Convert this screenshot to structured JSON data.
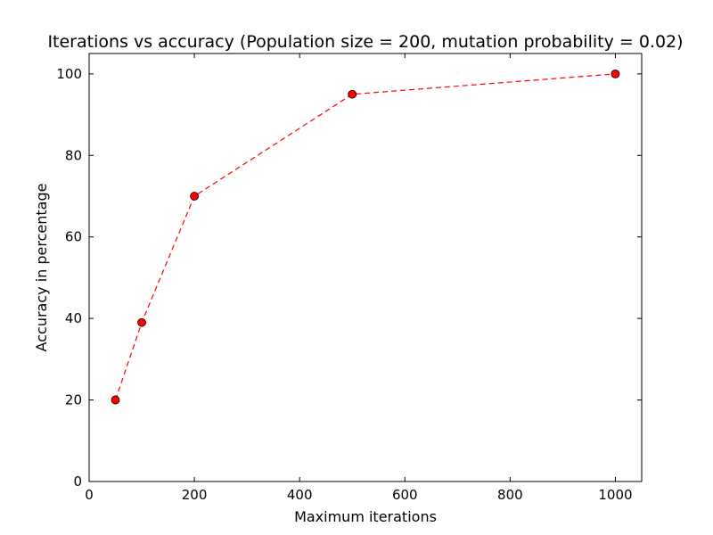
{
  "chart_data": {
    "type": "line",
    "title": "Iterations vs accuracy (Population size = 200, mutation probability = 0.02)",
    "xlabel": "Maximum iterations",
    "ylabel": "Accuracy in percentage",
    "xlim": [
      0,
      1050
    ],
    "ylim": [
      0,
      105
    ],
    "xticks": [
      0,
      200,
      400,
      600,
      800,
      1000
    ],
    "yticks": [
      0,
      20,
      40,
      60,
      80,
      100
    ],
    "xtick_labels": [
      "0",
      "200",
      "400",
      "600",
      "800",
      "1000"
    ],
    "ytick_labels": [
      "0",
      "20",
      "40",
      "60",
      "80",
      "100"
    ],
    "grid": false,
    "series": [
      {
        "x": [
          50,
          100,
          200,
          500,
          1000
        ],
        "values": [
          20,
          39,
          70,
          95,
          100
        ],
        "color": "#ff0000",
        "line_style": "dashed",
        "marker": "circle"
      }
    ]
  }
}
